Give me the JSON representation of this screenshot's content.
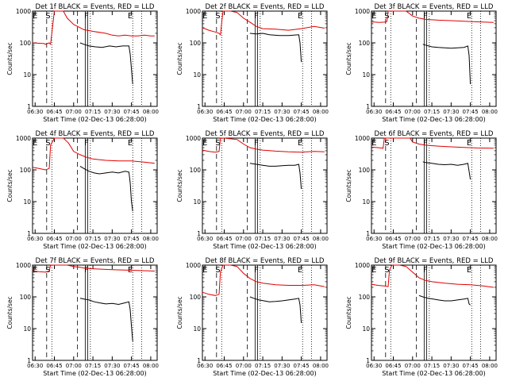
{
  "chart_data": [
    {
      "type": "line",
      "title": "Det 1f BLACK = Events, RED = LLD",
      "xlabel": "Start Time (02-Dec-13 06:28:00)",
      "ylabel": "Counts/sec",
      "ytype": "log",
      "ylim": [
        1,
        1000
      ],
      "yticks": [
        "1",
        "10",
        "100",
        "1000"
      ],
      "xticks": [
        "06:30",
        "06:45",
        "07:00",
        "07:15",
        "07:30",
        "07:45",
        "08:00"
      ],
      "markers": [
        "E",
        "S",
        "F",
        "E"
      ],
      "series": [
        {
          "color": "#e00000",
          "x": [
            "06:28",
            "06:37",
            "06:38",
            "06:41",
            "06:42",
            "06:45",
            "06:52",
            "06:55",
            "07:00",
            "07:05",
            "07:08",
            "07:15",
            "07:25",
            "07:30",
            "07:35",
            "07:40",
            "07:45",
            "07:50",
            "07:55",
            "08:00",
            "08:03"
          ],
          "values": [
            100,
            95,
            90,
            100,
            90,
            1000,
            1000,
            600,
            380,
            300,
            260,
            230,
            200,
            175,
            165,
            175,
            165,
            165,
            175,
            165,
            165
          ]
        },
        {
          "color": "#000000",
          "x": [
            "07:05",
            "07:08",
            "07:12",
            "07:17",
            "07:22",
            "07:28",
            "07:33",
            "07:38",
            "07:43",
            "07:44",
            "07:45",
            "07:46"
          ],
          "values": [
            100,
            90,
            80,
            75,
            72,
            80,
            75,
            80,
            80,
            45,
            15,
            5
          ]
        }
      ]
    },
    {
      "type": "line",
      "title": "Det 2f BLACK = Events, RED = LLD",
      "xlabel": "Start Time (02-Dec-13 06:28:00)",
      "ylabel": "Counts/sec",
      "ytype": "log",
      "ylim": [
        1,
        1000
      ],
      "yticks": [
        "1",
        "10",
        "100",
        "1000"
      ],
      "xticks": [
        "06:30",
        "06:45",
        "07:00",
        "07:15",
        "07:30",
        "07:45",
        "08:00"
      ],
      "markers": [
        "E",
        "S",
        "F",
        "E"
      ],
      "series": [
        {
          "color": "#e00000",
          "x": [
            "06:28",
            "06:33",
            "06:38",
            "06:41",
            "06:42",
            "06:44",
            "06:50",
            "06:55",
            "07:00",
            "07:05",
            "07:10",
            "07:15",
            "07:25",
            "07:35",
            "07:45",
            "07:55",
            "08:03"
          ],
          "values": [
            300,
            250,
            220,
            200,
            180,
            1000,
            1000,
            900,
            600,
            450,
            330,
            280,
            270,
            250,
            280,
            330,
            290
          ]
        },
        {
          "color": "#000000",
          "x": [
            "07:05",
            "07:10",
            "07:15",
            "07:20",
            "07:28",
            "07:35",
            "07:43",
            "07:44",
            "07:45"
          ],
          "values": [
            200,
            190,
            200,
            180,
            170,
            170,
            180,
            100,
            25
          ]
        }
      ]
    },
    {
      "type": "line",
      "title": "Det 3f BLACK = Events, RED = LLD",
      "xlabel": "Start Time (02-Dec-13 06:28:00)",
      "ylabel": "Counts/sec",
      "ytype": "log",
      "ylim": [
        1,
        1000
      ],
      "yticks": [
        "1",
        "10",
        "100",
        "1000"
      ],
      "xticks": [
        "06:30",
        "06:45",
        "07:00",
        "07:15",
        "07:30",
        "07:45",
        "08:00"
      ],
      "markers": [
        "E",
        "S",
        "F",
        "E"
      ],
      "series": [
        {
          "color": "#e00000",
          "x": [
            "06:28",
            "06:34",
            "06:38",
            "06:40",
            "06:41",
            "06:45",
            "06:55",
            "07:00",
            "07:05",
            "07:10",
            "07:20",
            "07:30",
            "07:40",
            "07:50",
            "08:03"
          ],
          "values": [
            460,
            440,
            450,
            470,
            1000,
            1000,
            1000,
            700,
            600,
            550,
            520,
            500,
            480,
            460,
            440
          ]
        },
        {
          "color": "#000000",
          "x": [
            "07:08",
            "07:10",
            "07:15",
            "07:20",
            "07:25",
            "07:30",
            "07:35",
            "07:40",
            "07:43",
            "07:44",
            "07:45"
          ],
          "values": [
            90,
            85,
            75,
            72,
            70,
            68,
            70,
            72,
            80,
            40,
            5
          ]
        }
      ]
    },
    {
      "type": "line",
      "title": "Det 4f BLACK = Events, RED = LLD",
      "xlabel": "Start Time (02-Dec-13 06:28:00)",
      "ylabel": "Counts/sec",
      "ytype": "log",
      "ylim": [
        1,
        1000
      ],
      "yticks": [
        "1",
        "10",
        "100",
        "1000"
      ],
      "xticks": [
        "06:30",
        "06:45",
        "07:00",
        "07:15",
        "07:30",
        "07:45",
        "08:00"
      ],
      "markers": [
        "E",
        "S",
        "F",
        "E"
      ],
      "series": [
        {
          "color": "#e00000",
          "x": [
            "06:28",
            "06:33",
            "06:38",
            "06:41",
            "06:42",
            "06:45",
            "06:52",
            "06:56",
            "07:00",
            "07:05",
            "07:10",
            "07:15",
            "07:25",
            "07:35",
            "07:45",
            "07:55",
            "08:03"
          ],
          "values": [
            120,
            110,
            100,
            110,
            600,
            1000,
            1000,
            700,
            380,
            300,
            250,
            220,
            200,
            190,
            190,
            175,
            160
          ]
        },
        {
          "color": "#000000",
          "x": [
            "07:05",
            "07:08",
            "07:12",
            "07:16",
            "07:20",
            "07:25",
            "07:30",
            "07:35",
            "07:40",
            "07:43",
            "07:44",
            "07:45",
            "07:46"
          ],
          "values": [
            130,
            110,
            90,
            80,
            75,
            80,
            85,
            80,
            90,
            85,
            40,
            10,
            5
          ]
        }
      ]
    },
    {
      "type": "line",
      "title": "Det 5f BLACK = Events, RED = LLD",
      "xlabel": "Start Time (02-Dec-13 06:28:00)",
      "ylabel": "Counts/sec",
      "ytype": "log",
      "ylim": [
        1,
        1000
      ],
      "yticks": [
        "1",
        "10",
        "100",
        "1000"
      ],
      "xticks": [
        "06:30",
        "06:45",
        "07:00",
        "07:15",
        "07:30",
        "07:45",
        "08:00"
      ],
      "markers": [
        "E",
        "S",
        "F",
        "E"
      ],
      "series": [
        {
          "color": "#e00000",
          "x": [
            "06:28",
            "06:33",
            "06:38",
            "06:41",
            "06:42",
            "06:45",
            "06:55",
            "07:00",
            "07:05",
            "07:10",
            "07:15",
            "07:25",
            "07:35",
            "07:45",
            "07:55",
            "08:03"
          ],
          "values": [
            420,
            380,
            360,
            380,
            1000,
            1000,
            900,
            650,
            500,
            450,
            420,
            390,
            370,
            360,
            380,
            370
          ]
        },
        {
          "color": "#000000",
          "x": [
            "07:05",
            "07:10",
            "07:15",
            "07:20",
            "07:25",
            "07:30",
            "07:35",
            "07:40",
            "07:43",
            "07:44",
            "07:45"
          ],
          "values": [
            160,
            150,
            140,
            130,
            130,
            135,
            140,
            140,
            150,
            80,
            25
          ]
        }
      ]
    },
    {
      "type": "line",
      "title": "Det 6f BLACK = Events, RED = LLD",
      "xlabel": "Start Time (02-Dec-13 06:28:00)",
      "ylabel": "Counts/sec",
      "ytype": "log",
      "ylim": [
        1,
        1000
      ],
      "yticks": [
        "1",
        "10",
        "100",
        "1000"
      ],
      "xticks": [
        "06:30",
        "06:45",
        "07:00",
        "07:15",
        "07:30",
        "07:45",
        "08:00"
      ],
      "markers": [
        "E",
        "S",
        "F",
        "E"
      ],
      "series": [
        {
          "color": "#e00000",
          "x": [
            "06:28",
            "06:33",
            "06:37",
            "06:38",
            "06:42",
            "06:50",
            "06:58",
            "07:00",
            "07:05",
            "07:10",
            "07:20",
            "07:30",
            "07:40",
            "07:50",
            "08:03"
          ],
          "values": [
            520,
            500,
            480,
            1000,
            1000,
            1000,
            1000,
            750,
            650,
            600,
            560,
            530,
            510,
            490,
            480
          ]
        },
        {
          "color": "#000000",
          "x": [
            "07:08",
            "07:10",
            "07:15",
            "07:20",
            "07:25",
            "07:30",
            "07:35",
            "07:40",
            "07:43",
            "07:44",
            "07:45"
          ],
          "values": [
            180,
            170,
            160,
            150,
            145,
            150,
            140,
            150,
            160,
            90,
            50
          ]
        }
      ]
    },
    {
      "type": "line",
      "title": "Det 7f BLACK = Events, RED = LLD",
      "xlabel": "Start Time (02-Dec-13 06:28:00)",
      "ylabel": "Counts/sec",
      "ytype": "log",
      "ylim": [
        1,
        1000
      ],
      "yticks": [
        "1",
        "10",
        "100",
        "1000"
      ],
      "xticks": [
        "06:30",
        "06:45",
        "07:00",
        "07:15",
        "07:30",
        "07:45",
        "08:00"
      ],
      "markers": [
        "E",
        "S",
        "F",
        "E"
      ],
      "series": [
        {
          "color": "#e00000",
          "x": [
            "06:28",
            "06:33",
            "06:38",
            "06:41",
            "06:42",
            "06:45",
            "06:55",
            "07:00",
            "07:05",
            "07:10",
            "07:20",
            "07:30",
            "07:40",
            "07:50",
            "08:03"
          ],
          "values": [
            650,
            620,
            600,
            650,
            1000,
            1000,
            1000,
            900,
            850,
            780,
            750,
            720,
            700,
            680,
            650
          ]
        },
        {
          "color": "#000000",
          "x": [
            "07:05",
            "07:08",
            "07:12",
            "07:16",
            "07:20",
            "07:25",
            "07:30",
            "07:35",
            "07:40",
            "07:43",
            "07:44",
            "07:45",
            "07:46"
          ],
          "values": [
            90,
            85,
            80,
            70,
            65,
            60,
            62,
            58,
            65,
            70,
            40,
            12,
            4
          ]
        }
      ]
    },
    {
      "type": "line",
      "title": "Det 8f BLACK = Events, RED = LLD",
      "xlabel": "Start Time (02-Dec-13 06:28:00)",
      "ylabel": "Counts/sec",
      "ytype": "log",
      "ylim": [
        1,
        1000
      ],
      "yticks": [
        "1",
        "10",
        "100",
        "1000"
      ],
      "xticks": [
        "06:30",
        "06:45",
        "07:00",
        "07:15",
        "07:30",
        "07:45",
        "08:00"
      ],
      "markers": [
        "E",
        "S",
        "F",
        "E"
      ],
      "series": [
        {
          "color": "#e00000",
          "x": [
            "06:28",
            "06:33",
            "06:38",
            "06:41",
            "06:42",
            "06:44",
            "06:50",
            "06:55",
            "07:00",
            "07:05",
            "07:10",
            "07:15",
            "07:25",
            "07:35",
            "07:45",
            "07:55",
            "08:03"
          ],
          "values": [
            140,
            120,
            110,
            120,
            600,
            1000,
            1000,
            900,
            550,
            380,
            300,
            270,
            240,
            230,
            230,
            240,
            210
          ]
        },
        {
          "color": "#000000",
          "x": [
            "07:05",
            "07:08",
            "07:12",
            "07:16",
            "07:20",
            "07:25",
            "07:30",
            "07:35",
            "07:40",
            "07:43",
            "07:44",
            "07:45"
          ],
          "values": [
            100,
            90,
            80,
            75,
            70,
            72,
            75,
            80,
            85,
            90,
            55,
            15
          ]
        }
      ]
    },
    {
      "type": "line",
      "title": "Det 9f BLACK = Events, RED = LLD",
      "xlabel": "Start Time (02-Dec-13 06:28:00)",
      "ylabel": "Counts/sec",
      "ytype": "log",
      "ylim": [
        1,
        1000
      ],
      "yticks": [
        "1",
        "10",
        "100",
        "1000"
      ],
      "xticks": [
        "06:30",
        "06:45",
        "07:00",
        "07:15",
        "07:30",
        "07:45",
        "08:00"
      ],
      "markers": [
        "E",
        "S",
        "F",
        "E"
      ],
      "series": [
        {
          "color": "#e00000",
          "x": [
            "06:28",
            "06:33",
            "06:38",
            "06:41",
            "06:42",
            "06:44",
            "06:50",
            "06:55",
            "07:00",
            "07:05",
            "07:10",
            "07:15",
            "07:25",
            "07:35",
            "07:45",
            "07:55",
            "08:03"
          ],
          "values": [
            250,
            230,
            220,
            210,
            700,
            1000,
            1000,
            900,
            600,
            400,
            330,
            300,
            270,
            250,
            240,
            220,
            200
          ]
        },
        {
          "color": "#000000",
          "x": [
            "07:05",
            "07:08",
            "07:12",
            "07:16",
            "07:20",
            "07:25",
            "07:30",
            "07:35",
            "07:40",
            "07:43",
            "07:44",
            "07:45"
          ],
          "values": [
            110,
            100,
            90,
            85,
            80,
            75,
            75,
            80,
            85,
            90,
            60,
            55
          ]
        }
      ]
    }
  ]
}
